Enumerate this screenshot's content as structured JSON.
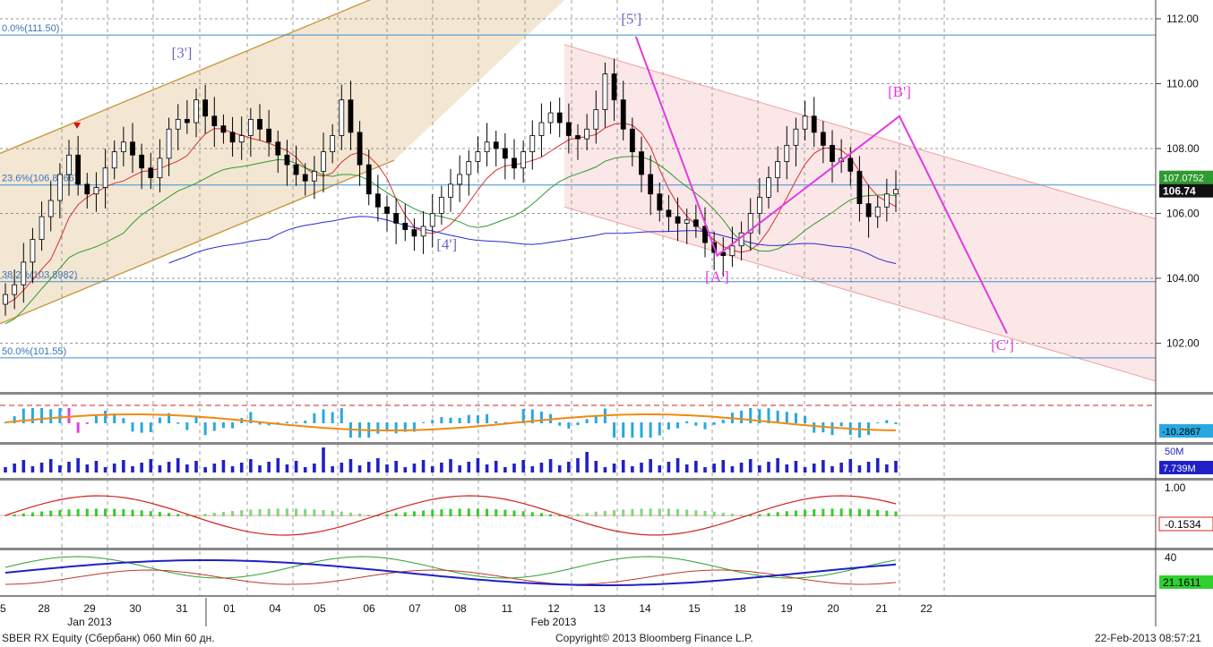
{
  "footer": {
    "security": "SBER RX Equity (Сбербанк) 060 Min 60 дн.",
    "copyright": "Copyright© 2013 Bloomberg Finance L.P.",
    "timestamp": "22-Feb-2013 08:57:21"
  },
  "chart_data": {
    "type": "candlestick",
    "instrument": "SBER RX Equity",
    "x_ticks": [
      "5",
      "28",
      "29",
      "30",
      "31",
      "01",
      "04",
      "05",
      "06",
      "07",
      "08",
      "11",
      "12",
      "13",
      "14",
      "15",
      "18",
      "19",
      "20",
      "21",
      "22"
    ],
    "month_labels": [
      {
        "label": "Jan 2013",
        "at_tick": "29"
      },
      {
        "label": "Feb 2013",
        "at_tick": "12"
      }
    ],
    "price_axis": {
      "ticks": [
        "112.00",
        "110.00",
        "108.00",
        "106.00",
        "104.00",
        "102.00"
      ],
      "ylim": [
        100.5,
        112.5
      ],
      "grid": true
    },
    "last_price": "106.74",
    "ma_label": "107.0752",
    "fib_levels": [
      {
        "label": "0.0%(111.50)",
        "value": 111.5
      },
      {
        "label": "23.6%(106.8766)",
        "value": 106.8766
      },
      {
        "label": "38.2%(103.8982)",
        "value": 103.8982
      },
      {
        "label": "50.0%(101.55)",
        "value": 101.55
      }
    ],
    "wave_labels": [
      "[3']",
      "[4']",
      "[5']",
      "[A']",
      "[B']",
      "[C']"
    ],
    "wave_path": [
      {
        "x": 13.8,
        "y": 111.45
      },
      {
        "x": 15.5,
        "y": 104.7
      },
      {
        "x": 19.4,
        "y": 109.0
      },
      {
        "x": 21.8,
        "y": 102.3
      }
    ],
    "closes": [
      103.5,
      103.8,
      104.5,
      105.2,
      105.9,
      106.4,
      107.2,
      107.8,
      106.9,
      106.6,
      106.8,
      107.4,
      107.9,
      108.2,
      107.8,
      107.4,
      107.1,
      107.7,
      108.6,
      108.9,
      108.8,
      109.5,
      109.0,
      108.7,
      108.5,
      108.2,
      108.4,
      108.9,
      108.6,
      108.2,
      107.8,
      107.5,
      107.2,
      107.0,
      107.3,
      107.9,
      108.4,
      109.5,
      108.5,
      107.5,
      106.6,
      106.2,
      106.0,
      105.7,
      105.5,
      105.3,
      105.6,
      106.0,
      106.5,
      106.9,
      107.2,
      107.6,
      107.9,
      108.2,
      108.0,
      107.7,
      107.4,
      107.9,
      108.4,
      108.8,
      109.1,
      108.8,
      108.4,
      108.3,
      108.6,
      109.2,
      110.3,
      109.5,
      108.6,
      107.9,
      107.2,
      106.6,
      106.1,
      105.9,
      105.7,
      105.8,
      105.6,
      105.1,
      104.8,
      104.7,
      105.0,
      105.4,
      106.0,
      106.5,
      107.1,
      107.6,
      108.1,
      108.6,
      109.0,
      108.5,
      108.1,
      107.6,
      107.7,
      107.3,
      106.3,
      105.9,
      106.2,
      106.6,
      106.74
    ],
    "indicator_1": {
      "label": "-10.2867"
    },
    "volume": {
      "axis_tick": "50M",
      "label": "7.739M"
    },
    "indicator_3": {
      "axis_tick": "1.00",
      "label": "-0.1534"
    },
    "indicator_4": {
      "axis_tick": "40",
      "label": "21.1611"
    }
  }
}
